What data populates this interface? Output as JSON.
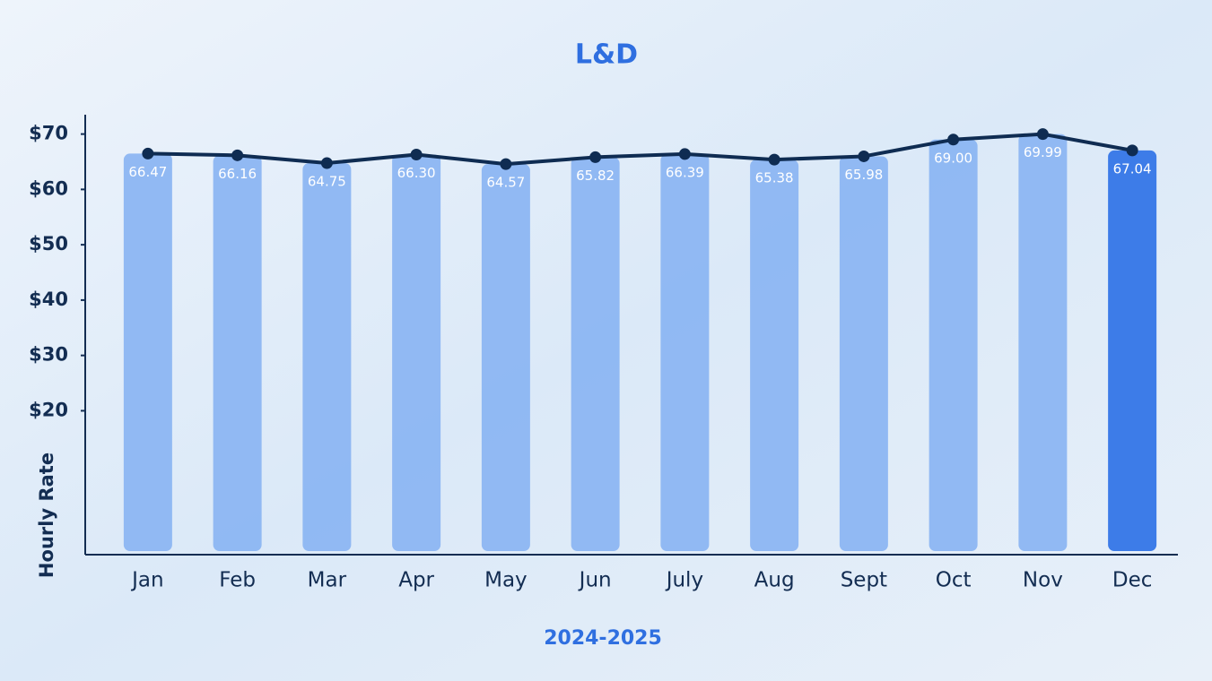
{
  "chart_data": {
    "type": "bar",
    "title": "L&D",
    "x_label": "2024-2025",
    "y_label": "Hourly Rate",
    "categories": [
      "Jan",
      "Feb",
      "Mar",
      "Apr",
      "May",
      "Jun",
      "July",
      "Aug",
      "Sept",
      "Oct",
      "Nov",
      "Dec"
    ],
    "values": [
      66.47,
      66.16,
      64.75,
      66.3,
      64.57,
      65.82,
      66.39,
      65.38,
      65.98,
      69,
      69.99,
      67.04
    ],
    "value_labels": [
      "66.47",
      "66.16",
      "64.75",
      "66.30",
      "64.57",
      "65.82",
      "66.39",
      "65.38",
      "65.98",
      "69.00",
      "69.99",
      "67.04"
    ],
    "colors": [
      "#8ab4f2",
      "#8ab4f2",
      "#8ab4f2",
      "#8ab4f2",
      "#8ab4f2",
      "#8ab4f2",
      "#8ab4f2",
      "#8ab4f2",
      "#8ab4f2",
      "#8ab4f2",
      "#8ab4f2",
      "#2f72e6"
    ],
    "line_color": "#0f2c52",
    "ylim": [
      -6,
      73.5
    ],
    "yticks": [
      {
        "value": 20,
        "label": "$20"
      },
      {
        "value": 30,
        "label": "$30"
      },
      {
        "value": 40,
        "label": "$40"
      },
      {
        "value": 50,
        "label": "$50"
      },
      {
        "value": 60,
        "label": "$60"
      },
      {
        "value": 70,
        "label": "$70"
      }
    ],
    "grid": false
  }
}
